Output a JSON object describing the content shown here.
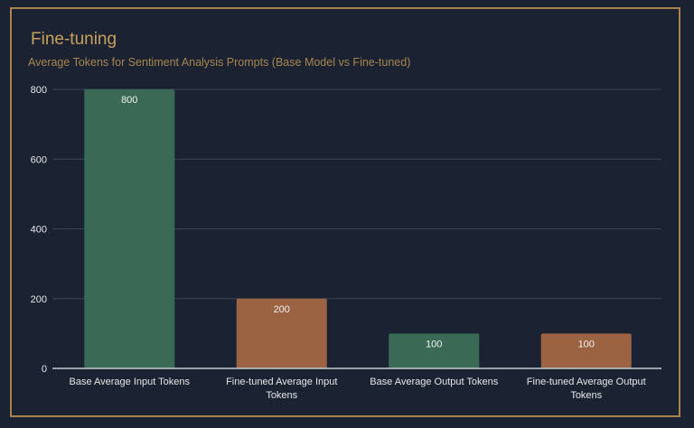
{
  "title": "Fine-tuning",
  "chart_data": {
    "type": "bar",
    "title": "Fine-tuning",
    "subtitle": "Average Tokens for Sentiment Analysis Prompts (Base Model vs Fine-tuned)",
    "categories": [
      "Base Average Input Tokens",
      "Fine-tuned Average Input Tokens",
      "Base Average Output Tokens",
      "Fine-tuned Average Output Tokens"
    ],
    "category_lines": [
      [
        "Base Average Input Tokens"
      ],
      [
        "Fine-tuned Average Input",
        "Tokens"
      ],
      [
        "Base Average Output Tokens"
      ],
      [
        "Fine-tuned Average Output",
        "Tokens"
      ]
    ],
    "values": [
      800,
      200,
      100,
      100
    ],
    "data_labels": [
      "800",
      "200",
      "100",
      "100"
    ],
    "bar_colors": [
      "#3a6a56",
      "#9b6342",
      "#3a6a56",
      "#9b6342"
    ],
    "ylim": [
      0,
      800
    ],
    "yticks": [
      0,
      200,
      400,
      600,
      800
    ],
    "grid": true,
    "legend": "none",
    "xlabel": "",
    "ylabel": ""
  },
  "colors": {
    "background": "#1b2333",
    "border": "#a8844c",
    "title": "#c9a05c",
    "grid": "#3b4556",
    "text": "#e6e6e6"
  }
}
